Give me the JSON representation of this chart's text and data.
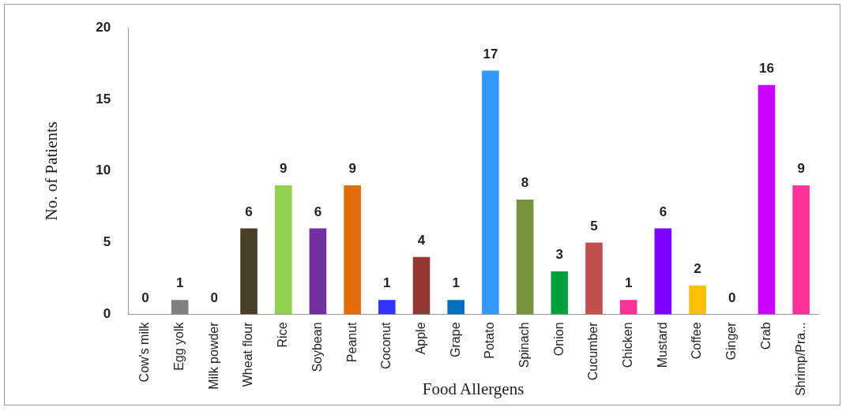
{
  "chart_data": {
    "type": "bar",
    "xlabel": "Food Allergens",
    "ylabel": "No. of Patients",
    "categories": [
      "Cow's milk",
      "Egg yolk",
      "Milk powder",
      "Wheat flour",
      "Rice",
      "Soybean",
      "Peanut",
      "Coconut",
      "Apple",
      "Grape",
      "Potato",
      "Spinach",
      "Onion",
      "Cucumber",
      "Chicken",
      "Mustard",
      "Coffee",
      "Ginger",
      "Crab",
      "Shrimp/Pra..."
    ],
    "values": [
      0,
      1,
      0,
      6,
      9,
      6,
      9,
      1,
      4,
      1,
      17,
      8,
      3,
      5,
      1,
      6,
      2,
      0,
      16,
      9
    ],
    "colors": [
      "#4f81bd",
      "#808080",
      "#c0c0c0",
      "#4a3f2a",
      "#92d050",
      "#7030a0",
      "#e36c0a",
      "#3333ff",
      "#953735",
      "#0070c0",
      "#3399ff",
      "#77933c",
      "#00a03c",
      "#c0504d",
      "#ff3399",
      "#7f00ff",
      "#ffc000",
      "#ff6600",
      "#cc00ff",
      "#ff3399"
    ],
    "ylim": [
      0,
      20
    ],
    "yticks": [
      0,
      5,
      10,
      15,
      20
    ],
    "grid": false,
    "legend": false,
    "data_labels": true
  }
}
